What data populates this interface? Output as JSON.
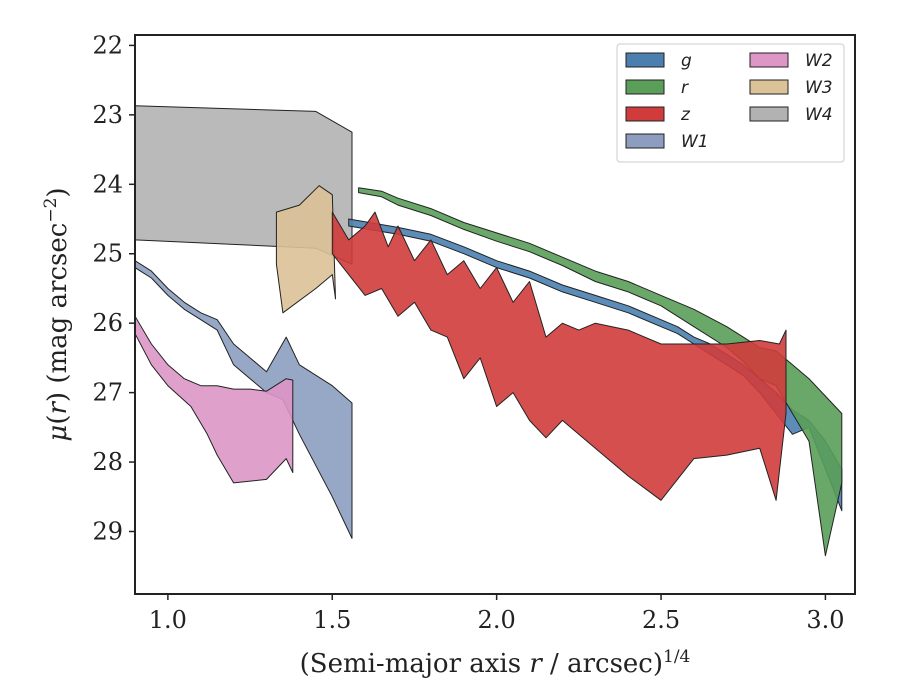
{
  "chart_data": {
    "type": "area",
    "xlabel_prefix": "(Semi-major axis ",
    "xlabel_var": "r",
    "xlabel_suffix": " / arcsec)",
    "xlabel_sup": "1/4",
    "ylabel_mu": "μ",
    "ylabel_var": "r",
    "ylabel_suffix": " (mag arcsec",
    "ylabel_sup": "−2",
    "ylabel_close": ")",
    "xlim": [
      0.9,
      3.09
    ],
    "ylim": [
      29.9,
      21.85
    ],
    "x_ticks": [
      "1.0",
      "1.5",
      "2.0",
      "2.5",
      "3.0"
    ],
    "x_tick_values": [
      1.0,
      1.5,
      2.0,
      2.5,
      3.0
    ],
    "y_ticks": [
      "22",
      "23",
      "24",
      "25",
      "26",
      "27",
      "28",
      "29"
    ],
    "y_tick_values": [
      22,
      23,
      24,
      25,
      26,
      27,
      28,
      29
    ],
    "legend_position": "top-right",
    "legend_columns": 2,
    "series": [
      {
        "name": "W4",
        "color": "#b2b2b2",
        "upper": [
          [
            0.9,
            22.87
          ],
          [
            1.45,
            22.95
          ],
          [
            1.56,
            23.25
          ]
        ],
        "lower": [
          [
            0.9,
            24.8
          ],
          [
            1.45,
            24.92
          ],
          [
            1.56,
            25.15
          ]
        ]
      },
      {
        "name": "W1",
        "color": "#8c9dc0",
        "upper": [
          [
            0.9,
            25.1
          ],
          [
            0.95,
            25.25
          ],
          [
            1.0,
            25.5
          ],
          [
            1.05,
            25.7
          ],
          [
            1.1,
            25.85
          ],
          [
            1.15,
            25.95
          ],
          [
            1.2,
            26.3
          ],
          [
            1.25,
            26.5
          ],
          [
            1.3,
            26.7
          ],
          [
            1.36,
            26.2
          ],
          [
            1.4,
            26.6
          ],
          [
            1.5,
            26.9
          ],
          [
            1.56,
            27.15
          ]
        ],
        "lower": [
          [
            0.9,
            25.2
          ],
          [
            0.95,
            25.35
          ],
          [
            1.0,
            25.6
          ],
          [
            1.05,
            25.8
          ],
          [
            1.1,
            25.95
          ],
          [
            1.15,
            26.1
          ],
          [
            1.2,
            26.6
          ],
          [
            1.25,
            26.8
          ],
          [
            1.3,
            27.0
          ],
          [
            1.35,
            27.1
          ],
          [
            1.4,
            27.6
          ],
          [
            1.5,
            28.5
          ],
          [
            1.56,
            29.1
          ]
        ]
      },
      {
        "name": "W2",
        "color": "#dd96c6",
        "upper": [
          [
            0.9,
            25.9
          ],
          [
            0.95,
            26.3
          ],
          [
            1.0,
            26.6
          ],
          [
            1.05,
            26.8
          ],
          [
            1.1,
            26.9
          ],
          [
            1.15,
            26.9
          ],
          [
            1.2,
            26.95
          ],
          [
            1.25,
            26.95
          ],
          [
            1.3,
            26.98
          ],
          [
            1.36,
            26.8
          ],
          [
            1.38,
            26.82
          ]
        ],
        "lower": [
          [
            0.9,
            26.15
          ],
          [
            0.95,
            26.6
          ],
          [
            1.0,
            26.9
          ],
          [
            1.07,
            27.2
          ],
          [
            1.12,
            27.6
          ],
          [
            1.15,
            27.9
          ],
          [
            1.2,
            28.3
          ],
          [
            1.3,
            28.25
          ],
          [
            1.36,
            27.95
          ],
          [
            1.38,
            28.15
          ]
        ]
      },
      {
        "name": "W3",
        "color": "#dcc297",
        "upper": [
          [
            1.33,
            24.4
          ],
          [
            1.4,
            24.3
          ],
          [
            1.46,
            24.02
          ],
          [
            1.5,
            24.15
          ]
        ],
        "lower": [
          [
            1.33,
            25.15
          ],
          [
            1.35,
            25.85
          ],
          [
            1.45,
            25.5
          ],
          [
            1.5,
            25.3
          ],
          [
            1.51,
            25.65
          ]
        ]
      },
      {
        "name": "g",
        "color": "#4a7fb0",
        "upper": [
          [
            1.55,
            24.5
          ],
          [
            1.7,
            24.62
          ],
          [
            1.8,
            24.72
          ],
          [
            1.9,
            24.9
          ],
          [
            2.0,
            25.1
          ],
          [
            2.1,
            25.25
          ],
          [
            2.2,
            25.45
          ],
          [
            2.3,
            25.6
          ],
          [
            2.4,
            25.75
          ],
          [
            2.5,
            25.95
          ],
          [
            2.55,
            26.05
          ],
          [
            2.6,
            26.2
          ],
          [
            2.65,
            26.3
          ],
          [
            2.7,
            26.45
          ],
          [
            2.75,
            26.6
          ],
          [
            2.8,
            26.8
          ],
          [
            2.85,
            27.0
          ],
          [
            2.9,
            27.25
          ],
          [
            2.95,
            27.4
          ],
          [
            3.0,
            27.7
          ],
          [
            3.05,
            28.1
          ]
        ],
        "lower": [
          [
            1.55,
            24.6
          ],
          [
            1.7,
            24.72
          ],
          [
            1.8,
            24.82
          ],
          [
            1.9,
            25.0
          ],
          [
            2.0,
            25.2
          ],
          [
            2.1,
            25.35
          ],
          [
            2.2,
            25.55
          ],
          [
            2.3,
            25.7
          ],
          [
            2.4,
            25.85
          ],
          [
            2.5,
            26.05
          ],
          [
            2.55,
            26.15
          ],
          [
            2.6,
            26.3
          ],
          [
            2.65,
            26.45
          ],
          [
            2.7,
            26.6
          ],
          [
            2.75,
            26.75
          ],
          [
            2.8,
            27.0
          ],
          [
            2.85,
            27.3
          ],
          [
            2.9,
            27.6
          ],
          [
            2.95,
            27.5
          ],
          [
            3.0,
            28.1
          ],
          [
            3.05,
            28.7
          ]
        ]
      },
      {
        "name": "r",
        "color": "#5a9e5a",
        "upper": [
          [
            1.58,
            24.05
          ],
          [
            1.65,
            24.1
          ],
          [
            1.7,
            24.2
          ],
          [
            1.8,
            24.35
          ],
          [
            1.9,
            24.55
          ],
          [
            2.0,
            24.7
          ],
          [
            2.1,
            24.85
          ],
          [
            2.2,
            25.05
          ],
          [
            2.3,
            25.25
          ],
          [
            2.4,
            25.4
          ],
          [
            2.5,
            25.6
          ],
          [
            2.6,
            25.8
          ],
          [
            2.7,
            26.05
          ],
          [
            2.75,
            26.2
          ],
          [
            2.8,
            26.35
          ],
          [
            2.85,
            26.4
          ],
          [
            2.9,
            26.6
          ],
          [
            2.95,
            26.8
          ],
          [
            3.0,
            27.05
          ],
          [
            3.05,
            27.3
          ]
        ],
        "lower": [
          [
            1.58,
            24.12
          ],
          [
            1.65,
            24.18
          ],
          [
            1.7,
            24.3
          ],
          [
            1.8,
            24.45
          ],
          [
            1.9,
            24.65
          ],
          [
            2.0,
            24.82
          ],
          [
            2.1,
            24.97
          ],
          [
            2.2,
            25.17
          ],
          [
            2.3,
            25.4
          ],
          [
            2.4,
            25.55
          ],
          [
            2.5,
            25.75
          ],
          [
            2.6,
            26.05
          ],
          [
            2.7,
            26.35
          ],
          [
            2.75,
            26.55
          ],
          [
            2.8,
            26.8
          ],
          [
            2.85,
            26.9
          ],
          [
            2.9,
            27.3
          ],
          [
            2.95,
            27.7
          ],
          [
            3.0,
            29.35
          ],
          [
            3.05,
            28.3
          ]
        ]
      },
      {
        "name": "z",
        "color": "#d03c3c",
        "upper": [
          [
            1.5,
            24.4
          ],
          [
            1.55,
            24.8
          ],
          [
            1.6,
            24.6
          ],
          [
            1.63,
            24.4
          ],
          [
            1.67,
            24.9
          ],
          [
            1.7,
            24.6
          ],
          [
            1.75,
            25.1
          ],
          [
            1.8,
            24.8
          ],
          [
            1.85,
            25.3
          ],
          [
            1.9,
            25.1
          ],
          [
            1.95,
            25.5
          ],
          [
            2.0,
            25.2
          ],
          [
            2.05,
            25.7
          ],
          [
            2.1,
            25.4
          ],
          [
            2.15,
            26.2
          ],
          [
            2.2,
            26.0
          ],
          [
            2.25,
            26.1
          ],
          [
            2.3,
            26.0
          ],
          [
            2.4,
            26.1
          ],
          [
            2.5,
            26.3
          ],
          [
            2.6,
            26.3
          ],
          [
            2.7,
            26.3
          ],
          [
            2.8,
            26.25
          ],
          [
            2.86,
            26.3
          ],
          [
            2.88,
            26.1
          ]
        ],
        "lower": [
          [
            1.5,
            25.0
          ],
          [
            1.55,
            25.3
          ],
          [
            1.6,
            25.6
          ],
          [
            1.65,
            25.5
          ],
          [
            1.7,
            25.9
          ],
          [
            1.75,
            25.7
          ],
          [
            1.8,
            26.1
          ],
          [
            1.85,
            26.2
          ],
          [
            1.9,
            26.8
          ],
          [
            1.95,
            26.5
          ],
          [
            2.0,
            27.2
          ],
          [
            2.05,
            27.0
          ],
          [
            2.1,
            27.4
          ],
          [
            2.15,
            27.65
          ],
          [
            2.2,
            27.4
          ],
          [
            2.3,
            27.8
          ],
          [
            2.4,
            28.2
          ],
          [
            2.5,
            28.55
          ],
          [
            2.6,
            27.95
          ],
          [
            2.7,
            27.9
          ],
          [
            2.8,
            27.8
          ],
          [
            2.85,
            28.55
          ],
          [
            2.88,
            27.3
          ]
        ]
      }
    ],
    "legend": [
      {
        "label": "g",
        "color": "#4a7fb0"
      },
      {
        "label": "r",
        "color": "#5a9e5a"
      },
      {
        "label": "z",
        "color": "#d03c3c"
      },
      {
        "label": "W1",
        "color": "#8c9dc0"
      },
      {
        "label": "W2",
        "color": "#dd96c6"
      },
      {
        "label": "W3",
        "color": "#dcc297"
      },
      {
        "label": "W4",
        "color": "#b2b2b2"
      }
    ]
  }
}
